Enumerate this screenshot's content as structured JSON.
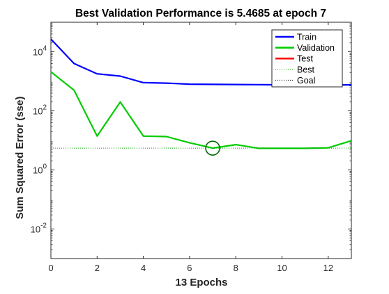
{
  "window": {
    "background": "#ffffff"
  },
  "chart_data": {
    "type": "line",
    "title": "Best Validation Performance is 5.4685 at epoch 7",
    "xlabel": "13 Epochs",
    "ylabel": "Sum Squared Error  (sse)",
    "y_scale": "log",
    "xlim": [
      0,
      13
    ],
    "ylim": [
      0.001,
      100000
    ],
    "x_ticks": [
      0,
      2,
      4,
      6,
      8,
      10,
      12
    ],
    "y_ticks": [
      {
        "value": 0.01,
        "base": "10",
        "exp": "-2"
      },
      {
        "value": 1,
        "base": "10",
        "exp": "0"
      },
      {
        "value": 100,
        "base": "10",
        "exp": "2"
      },
      {
        "value": 10000,
        "base": "10",
        "exp": "4"
      }
    ],
    "grid": false,
    "legend_position": "top-right",
    "series": [
      {
        "name": "Train",
        "color": "#0000ff",
        "style": "solid",
        "x": [
          0,
          1,
          2,
          3,
          4,
          5,
          6,
          7,
          8,
          9,
          10,
          11,
          12,
          13
        ],
        "values": [
          27000,
          4000,
          1800,
          1500,
          900,
          870,
          800,
          790,
          780,
          770,
          760,
          760,
          760,
          760
        ]
      },
      {
        "name": "Validation",
        "color": "#00cc00",
        "style": "solid",
        "x": [
          0,
          1,
          2,
          3,
          4,
          5,
          6,
          7,
          8,
          9,
          10,
          11,
          12,
          13
        ],
        "values": [
          2100,
          500,
          14,
          200,
          14,
          13.5,
          8.3,
          5.4685,
          7.2,
          5.4,
          5.4,
          5.4,
          5.6,
          9.8
        ]
      },
      {
        "name": "Test",
        "color": "#ff0000",
        "style": "solid",
        "x": [],
        "values": []
      },
      {
        "name": "Best",
        "color": "#00aa00",
        "style": "dotted",
        "x": [
          0,
          13
        ],
        "values": [
          5.4685,
          5.4685
        ]
      },
      {
        "name": "Goal",
        "color": "#000000",
        "style": "dotted",
        "x": [],
        "values": []
      }
    ],
    "best_marker": {
      "x": 7,
      "y": 5.4685,
      "color": "#006600"
    }
  }
}
